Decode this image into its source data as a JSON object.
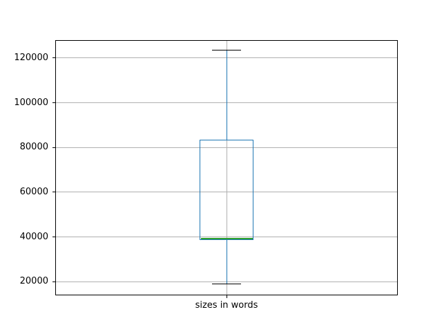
{
  "figure": {
    "background": "#ffffff"
  },
  "chart_data": {
    "type": "boxplot",
    "title": "",
    "xlabel": "",
    "ylabel": "",
    "categories": [
      "sizes in words"
    ],
    "series": [
      {
        "name": "sizes in words",
        "whisker_low": 19000,
        "q1": 38700,
        "median": 39300,
        "q3": 83400,
        "whisker_high": 123500,
        "outliers": []
      }
    ],
    "yticks": [
      20000,
      40000,
      60000,
      80000,
      100000,
      120000
    ],
    "ytick_labels": [
      "20000",
      "40000",
      "60000",
      "80000",
      "100000",
      "120000"
    ],
    "ylim": [
      13900,
      128000
    ],
    "grid": true,
    "legend": "none",
    "colors": {
      "box": "#1f77b4",
      "whisker": "#1f77b4",
      "cap": "#000000",
      "median": "#2ca02c",
      "grid": "#b0b0b0",
      "spine": "#000000",
      "text": "#000000"
    }
  }
}
